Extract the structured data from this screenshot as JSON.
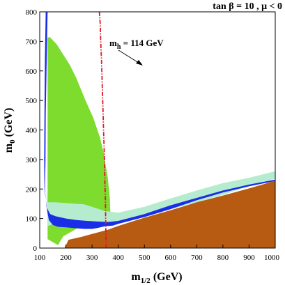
{
  "chart_data": {
    "type": "area",
    "title": "tan β = 10 ,  μ < 0",
    "xlabel": {
      "main": "m",
      "sub": "1/2",
      "unit": " (GeV)"
    },
    "ylabel": {
      "main": "m",
      "sub": "0",
      "unit": " (GeV)"
    },
    "xlim": [
      100,
      1000
    ],
    "ylim": [
      0,
      800
    ],
    "x_ticks": [
      100,
      200,
      300,
      400,
      500,
      600,
      700,
      800,
      900,
      1000
    ],
    "y_ticks": [
      0,
      100,
      200,
      300,
      400,
      500,
      600,
      700,
      800
    ],
    "grid": false,
    "annotation": {
      "main": "m",
      "sub": "h",
      "text": " = 114 GeV",
      "x": 350,
      "y": 670
    },
    "colors": {
      "green": "#7ddc2e",
      "light_green": "#b5ecd0",
      "blue": "#1a2ee8",
      "brown": "#b75a12",
      "higgs_line": "#dd1a2a"
    },
    "regions": [
      {
        "id": "bsg-excluded-green",
        "color": "green",
        "points": [
          [
            130,
            712
          ],
          [
            138,
            715
          ],
          [
            165,
            690
          ],
          [
            215,
            620
          ],
          [
            240,
            575
          ],
          [
            275,
            500
          ],
          [
            305,
            440
          ],
          [
            330,
            375
          ],
          [
            345,
            320
          ],
          [
            352,
            280
          ],
          [
            360,
            240
          ],
          [
            363,
            210
          ],
          [
            368,
            170
          ],
          [
            370,
            120
          ],
          [
            372,
            85
          ],
          [
            250,
            70
          ],
          [
            190,
            40
          ],
          [
            170,
            10
          ],
          [
            130,
            30
          ],
          [
            130,
            712
          ]
        ]
      },
      {
        "id": "g-2-light-green",
        "color": "light_green",
        "points": [
          [
            125,
            200
          ],
          [
            130,
            155
          ],
          [
            160,
            155
          ],
          [
            210,
            152
          ],
          [
            270,
            148
          ],
          [
            300,
            140
          ],
          [
            350,
            125
          ],
          [
            400,
            120
          ],
          [
            500,
            140
          ],
          [
            600,
            168
          ],
          [
            700,
            195
          ],
          [
            800,
            220
          ],
          [
            900,
            238
          ],
          [
            1000,
            260
          ],
          [
            1000,
            235
          ],
          [
            900,
            210
          ],
          [
            800,
            180
          ],
          [
            700,
            155
          ],
          [
            600,
            132
          ],
          [
            500,
            105
          ],
          [
            420,
            90
          ],
          [
            380,
            88
          ],
          [
            350,
            90
          ],
          [
            300,
            90
          ],
          [
            250,
            88
          ],
          [
            200,
            85
          ],
          [
            150,
            80
          ],
          [
            130,
            75
          ],
          [
            125,
            200
          ]
        ]
      },
      {
        "id": "wmap-blue-strip",
        "color": "blue",
        "points": [
          [
            123,
            800
          ],
          [
            130,
            800
          ],
          [
            127,
            650
          ],
          [
            123,
            450
          ],
          [
            122,
            300
          ],
          [
            120,
            200
          ],
          [
            125,
            140
          ],
          [
            140,
            115
          ],
          [
            160,
            108
          ],
          [
            200,
            100
          ],
          [
            240,
            95
          ],
          [
            280,
            92
          ],
          [
            320,
            90
          ],
          [
            360,
            88
          ],
          [
            400,
            92
          ],
          [
            500,
            115
          ],
          [
            600,
            145
          ],
          [
            700,
            170
          ],
          [
            800,
            195
          ],
          [
            900,
            215
          ],
          [
            1000,
            232
          ],
          [
            1000,
            227
          ],
          [
            900,
            209
          ],
          [
            800,
            188
          ],
          [
            700,
            162
          ],
          [
            600,
            132
          ],
          [
            500,
            105
          ],
          [
            400,
            82
          ],
          [
            380,
            76
          ],
          [
            350,
            74
          ],
          [
            320,
            68
          ],
          [
            300,
            65
          ],
          [
            270,
            65
          ],
          [
            240,
            67
          ],
          [
            200,
            70
          ],
          [
            170,
            72
          ],
          [
            150,
            78
          ],
          [
            135,
            95
          ],
          [
            127,
            135
          ],
          [
            118,
            200
          ],
          [
            117,
            300
          ],
          [
            118,
            450
          ],
          [
            120,
            650
          ]
        ]
      },
      {
        "id": "stau-lsp-brown",
        "color": "brown",
        "points": [
          [
            195,
            0
          ],
          [
            210,
            28
          ],
          [
            260,
            38
          ],
          [
            300,
            48
          ],
          [
            360,
            62
          ],
          [
            400,
            75
          ],
          [
            500,
            103
          ],
          [
            600,
            128
          ],
          [
            700,
            155
          ],
          [
            800,
            178
          ],
          [
            900,
            202
          ],
          [
            1000,
            228
          ],
          [
            1000,
            0
          ]
        ]
      }
    ],
    "higgs_line": {
      "id": "higgs-limit",
      "color": "higgs_line",
      "points": [
        [
          328,
          800
        ],
        [
          331,
          760
        ],
        [
          333,
          700
        ],
        [
          336,
          640
        ],
        [
          338,
          580
        ],
        [
          340,
          520
        ],
        [
          342,
          460
        ],
        [
          344,
          400
        ],
        [
          346,
          340
        ],
        [
          348,
          280
        ],
        [
          349,
          220
        ],
        [
          351,
          160
        ],
        [
          352,
          100
        ],
        [
          353,
          50
        ],
        [
          354,
          0
        ]
      ]
    }
  }
}
